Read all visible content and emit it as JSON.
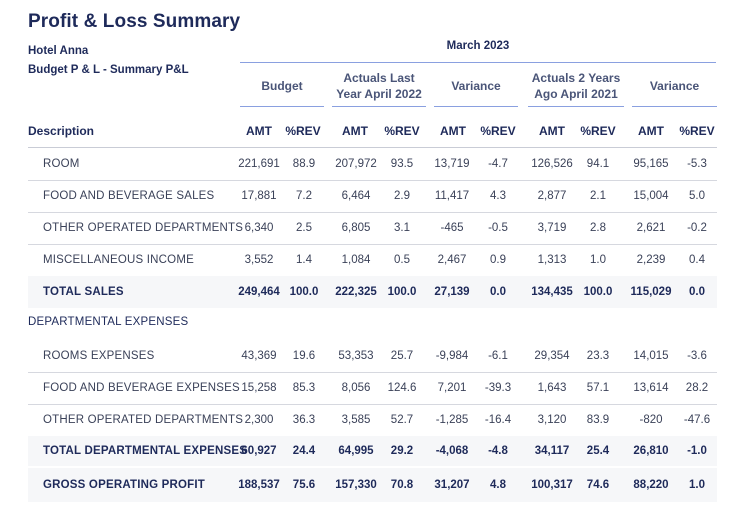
{
  "title": "Profit & Loss Summary",
  "hotel": "Hotel Anna",
  "budget_name": "Budget P & L - Summary P&L",
  "period": "March 2023",
  "groups": [
    {
      "label": "Budget"
    },
    {
      "label": "Actuals Last Year April 2022"
    },
    {
      "label": "Variance"
    },
    {
      "label": "Actuals 2 Years Ago April 2021"
    },
    {
      "label": "Variance"
    }
  ],
  "description_header": "Description",
  "subheaders": [
    "AMT",
    "%REV",
    "AMT",
    "%REV",
    "AMT",
    "%REV",
    "AMT",
    "%REV",
    "AMT",
    "%REV"
  ],
  "section_departmental": "DEPARTMENTAL EXPENSES",
  "rows": [
    {
      "label": "ROOM",
      "values": [
        "221,691",
        "88.9",
        "207,972",
        "93.5",
        "13,719",
        "-4.7",
        "126,526",
        "94.1",
        "95,165",
        "-5.3"
      ]
    },
    {
      "label": "FOOD AND BEVERAGE SALES",
      "values": [
        "17,881",
        "7.2",
        "6,464",
        "2.9",
        "11,417",
        "4.3",
        "2,877",
        "2.1",
        "15,004",
        "5.0"
      ]
    },
    {
      "label": "OTHER OPERATED DEPARTMENTS",
      "values": [
        "6,340",
        "2.5",
        "6,805",
        "3.1",
        "-465",
        "-0.5",
        "3,719",
        "2.8",
        "2,621",
        "-0.2"
      ]
    },
    {
      "label": "MISCELLANEOUS INCOME",
      "values": [
        "3,552",
        "1.4",
        "1,084",
        "0.5",
        "2,467",
        "0.9",
        "1,313",
        "1.0",
        "2,239",
        "0.4"
      ]
    },
    {
      "label": "TOTAL SALES",
      "values": [
        "249,464",
        "100.0",
        "222,325",
        "100.0",
        "27,139",
        "0.0",
        "134,435",
        "100.0",
        "115,029",
        "0.0"
      ]
    },
    {
      "label": "ROOMS EXPENSES",
      "values": [
        "43,369",
        "19.6",
        "53,353",
        "25.7",
        "-9,984",
        "-6.1",
        "29,354",
        "23.3",
        "14,015",
        "-3.6"
      ]
    },
    {
      "label": "FOOD AND BEVERAGE EXPENSES",
      "values": [
        "15,258",
        "85.3",
        "8,056",
        "124.6",
        "7,201",
        "-39.3",
        "1,643",
        "57.1",
        "13,614",
        "28.2"
      ]
    },
    {
      "label": "OTHER OPERATED DEPARTMENTS",
      "values": [
        "2,300",
        "36.3",
        "3,585",
        "52.7",
        "-1,285",
        "-16.4",
        "3,120",
        "83.9",
        "-820",
        "-47.6"
      ]
    },
    {
      "label": "TOTAL DEPARTMENTAL EXPENSES",
      "values": [
        "60,927",
        "24.4",
        "64,995",
        "29.2",
        "-4,068",
        "-4.8",
        "34,117",
        "25.4",
        "26,810",
        "-1.0"
      ]
    },
    {
      "label": "GROSS OPERATING PROFIT",
      "values": [
        "188,537",
        "75.6",
        "157,330",
        "70.8",
        "31,207",
        "4.8",
        "100,317",
        "74.6",
        "88,220",
        "1.0"
      ]
    }
  ]
}
